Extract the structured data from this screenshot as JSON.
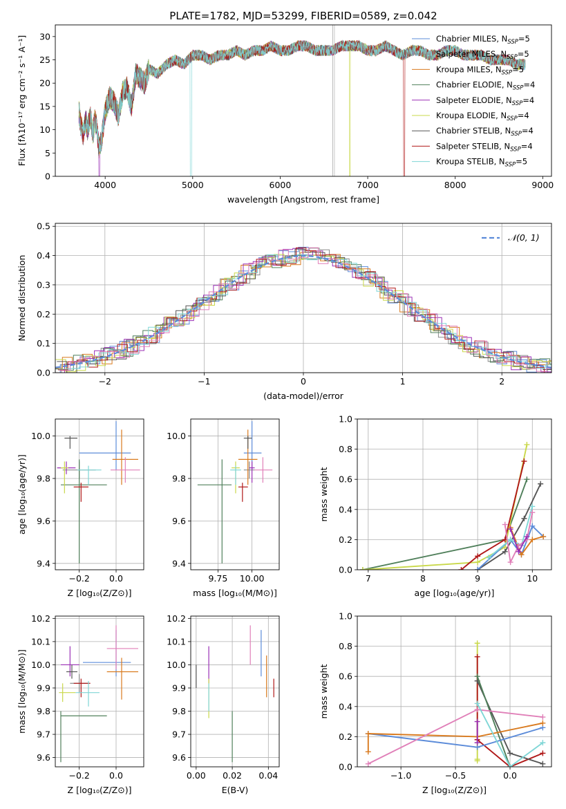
{
  "colors": {
    "chabrier_miles": "#5b8bd9",
    "salpeter_miles": "#8a8a8a",
    "kroupa_miles": "#d97a1e",
    "chabrier_elodie": "#4f7f5a",
    "salpeter_elodie": "#9a2fb5",
    "kroupa_elodie": "#c9d84a",
    "chabrier_stelib": "#555555",
    "salpeter_stelib": "#b01818",
    "kroupa_stelib": "#7fd6d6",
    "pink": "#e07fb8",
    "gaussian": "#5b8bd9"
  },
  "legend_entries": [
    {
      "key": "chabrier_miles",
      "text": "Chabrier MILES, N",
      "sub": "SSP",
      "tail": "=5"
    },
    {
      "key": "salpeter_miles",
      "text": "Salpeter MILES, N",
      "sub": "SSP",
      "tail": "=5"
    },
    {
      "key": "kroupa_miles",
      "text": "Kroupa MILES, N",
      "sub": "SSP",
      "tail": "=5"
    },
    {
      "key": "chabrier_elodie",
      "text": "Chabrier ELODIE, N",
      "sub": "SSP",
      "tail": "=4"
    },
    {
      "key": "salpeter_elodie",
      "text": "Salpeter ELODIE, N",
      "sub": "SSP",
      "tail": "=4"
    },
    {
      "key": "kroupa_elodie",
      "text": "Kroupa ELODIE, N",
      "sub": "SSP",
      "tail": "=4"
    },
    {
      "key": "chabrier_stelib",
      "text": "Chabrier STELIB, N",
      "sub": "SSP",
      "tail": "=4"
    },
    {
      "key": "salpeter_stelib",
      "text": "Salpeter STELIB, N",
      "sub": "SSP",
      "tail": "=4"
    },
    {
      "key": "kroupa_stelib",
      "text": "Kroupa STELIB, N",
      "sub": "SSP",
      "tail": "=5"
    }
  ],
  "chart_data": [
    {
      "id": "spectrum",
      "type": "line",
      "title": "PLATE=1782, MJD=53299, FIBERID=0589, z=0.042",
      "xlabel": "wavelength [Angstrom, rest frame]",
      "ylabel": "Flux [fλ10⁻¹⁷ erg cm⁻² s⁻¹ A⁻¹]",
      "xlim": [
        3430,
        9100
      ],
      "ylim": [
        0,
        32.5
      ],
      "xticks": [
        4000,
        5000,
        6000,
        7000,
        8000,
        9000
      ],
      "yticks": [
        0,
        5,
        10,
        15,
        20,
        25,
        30
      ],
      "grid": false,
      "legend": "top-right",
      "spectrum_x": [
        3700,
        3720,
        3750,
        3780,
        3800,
        3830,
        3860,
        3880,
        3900,
        3930,
        3960,
        4000,
        4050,
        4100,
        4150,
        4200,
        4250,
        4300,
        4350,
        4400,
        4450,
        4500,
        4600,
        4700,
        4800,
        4900,
        5000,
        5100,
        5200,
        5300,
        5400,
        5500,
        5600,
        5700,
        5800,
        5900,
        6000,
        6100,
        6200,
        6300,
        6400,
        6500,
        6600,
        6700,
        6800,
        6900,
        7000,
        7100,
        7200,
        7300,
        7400,
        7500,
        7600,
        7700,
        7800,
        7900,
        8000,
        8100,
        8200,
        8300,
        8400,
        8500,
        8600,
        8700,
        8800
      ],
      "spectrum_y": [
        14,
        11,
        9,
        12,
        10,
        13,
        9,
        12,
        11,
        6,
        8,
        14,
        17,
        16,
        13,
        18,
        19,
        15,
        22,
        21,
        20,
        23,
        22,
        24,
        25,
        24,
        26,
        26,
        25,
        26,
        26,
        27,
        26,
        27,
        27,
        28,
        27,
        27,
        28,
        28,
        27,
        27,
        27,
        28,
        28,
        28,
        27,
        27,
        28,
        27,
        26,
        27,
        27,
        26,
        26,
        27,
        27,
        26,
        26,
        26,
        25,
        25,
        25,
        24,
        24
      ],
      "series_order": [
        "chabrier_miles",
        "salpeter_miles",
        "kroupa_miles",
        "chabrier_elodie",
        "salpeter_elodie",
        "kroupa_elodie",
        "chabrier_stelib",
        "salpeter_stelib",
        "kroupa_stelib"
      ]
    },
    {
      "id": "histogram",
      "type": "bar",
      "xlabel": "(data-model)/error",
      "ylabel": "Normed distribution",
      "xlim": [
        -2.5,
        2.5
      ],
      "ylim": [
        0,
        0.51
      ],
      "xticks": [
        -2,
        -1,
        0,
        1,
        2
      ],
      "yticks": [
        0.0,
        0.1,
        0.2,
        0.3,
        0.4,
        0.5
      ],
      "grid": true,
      "legend": "top-right",
      "legend_label": "𝒩(0, 1)",
      "bin_width": 0.1,
      "gaussian": {
        "mu": 0,
        "sigma": 1
      }
    },
    {
      "id": "age_vs_Z",
      "type": "scatter",
      "xlabel": "Z [log₁₀(Z/Z⊙)]",
      "ylabel": "age  [log₁₀(age/yr)]",
      "xlim": [
        -0.33,
        0.15
      ],
      "ylim": [
        9.37,
        10.08
      ],
      "xticks": [
        -0.2,
        0.0
      ],
      "yticks": [
        9.4,
        9.6,
        9.8,
        10.0
      ],
      "grid": true,
      "points": [
        {
          "c": "chabrier_miles",
          "x": 0.0,
          "y": 9.92,
          "ex": [
            -0.2,
            0.08
          ],
          "ey": [
            9.84,
            10.07
          ]
        },
        {
          "c": "salpeter_miles",
          "x": -0.2,
          "y": 9.84,
          "ex": [
            -0.29,
            -0.11
          ],
          "ey": [
            9.8,
            9.88
          ]
        },
        {
          "c": "kroupa_miles",
          "x": 0.03,
          "y": 9.89,
          "ex": [
            -0.02,
            0.12
          ],
          "ey": [
            9.77,
            10.03
          ]
        },
        {
          "c": "chabrier_elodie",
          "x": -0.2,
          "y": 9.77,
          "ex": [
            -0.3,
            -0.05
          ],
          "ey": [
            9.4,
            9.89
          ]
        },
        {
          "c": "salpeter_elodie",
          "x": -0.27,
          "y": 9.85,
          "ex": [
            -0.32,
            -0.22
          ],
          "ey": [
            9.82,
            9.88
          ]
        },
        {
          "c": "kroupa_elodie",
          "x": -0.28,
          "y": 9.85,
          "ex": [
            -0.3,
            -0.26
          ],
          "ey": [
            9.73,
            9.88
          ]
        },
        {
          "c": "chabrier_stelib",
          "x": -0.25,
          "y": 9.99,
          "ex": [
            -0.28,
            -0.21
          ],
          "ey": [
            9.94,
            10.0
          ]
        },
        {
          "c": "salpeter_stelib",
          "x": -0.19,
          "y": 9.76,
          "ex": [
            -0.23,
            -0.15
          ],
          "ey": [
            9.69,
            9.78
          ]
        },
        {
          "c": "kroupa_stelib",
          "x": -0.15,
          "y": 9.84,
          "ex": [
            -0.21,
            -0.08
          ],
          "ey": [
            9.77,
            9.86
          ]
        },
        {
          "c": "pink",
          "x": 0.05,
          "y": 9.84,
          "ex": [
            -0.03,
            0.13
          ],
          "ey": [
            9.78,
            9.9
          ]
        }
      ]
    },
    {
      "id": "age_vs_mass",
      "type": "scatter",
      "xlabel": "mass [log₁₀(M/M⊙)]",
      "ylabel": "",
      "xlim": [
        9.55,
        10.2
      ],
      "ylim": [
        9.37,
        10.08
      ],
      "xticks": [
        9.75,
        10.0
      ],
      "yticks": [
        9.4,
        9.6,
        9.8,
        10.0
      ],
      "grid": true,
      "points": [
        {
          "c": "chabrier_miles",
          "x": 10.0,
          "y": 9.92,
          "ex": [
            9.94,
            10.07
          ],
          "ey": [
            9.84,
            10.07
          ]
        },
        {
          "c": "salpeter_miles",
          "x": 9.98,
          "y": 9.84,
          "ex": [
            9.94,
            10.02
          ],
          "ey": [
            9.8,
            9.88
          ]
        },
        {
          "c": "kroupa_miles",
          "x": 9.97,
          "y": 9.89,
          "ex": [
            9.9,
            10.04
          ],
          "ey": [
            9.77,
            10.03
          ]
        },
        {
          "c": "chabrier_elodie",
          "x": 9.78,
          "y": 9.77,
          "ex": [
            9.6,
            9.85
          ],
          "ey": [
            9.4,
            9.89
          ]
        },
        {
          "c": "salpeter_elodie",
          "x": 10.0,
          "y": 9.85,
          "ex": [
            9.98,
            10.02
          ],
          "ey": [
            9.78,
            9.88
          ]
        },
        {
          "c": "kroupa_elodie",
          "x": 9.88,
          "y": 9.85,
          "ex": [
            9.85,
            9.91
          ],
          "ey": [
            9.73,
            9.88
          ]
        },
        {
          "c": "chabrier_stelib",
          "x": 9.97,
          "y": 9.99,
          "ex": [
            9.94,
            10.0
          ],
          "ey": [
            9.94,
            10.0
          ]
        },
        {
          "c": "salpeter_stelib",
          "x": 9.93,
          "y": 9.76,
          "ex": [
            9.9,
            9.97
          ],
          "ey": [
            9.69,
            9.78
          ]
        },
        {
          "c": "kroupa_stelib",
          "x": 9.88,
          "y": 9.84,
          "ex": [
            9.84,
            9.92
          ],
          "ey": [
            9.77,
            9.86
          ]
        },
        {
          "c": "pink",
          "x": 10.08,
          "y": 9.84,
          "ex": [
            10.02,
            10.15
          ],
          "ey": [
            9.78,
            9.9
          ]
        }
      ]
    },
    {
      "id": "weight_vs_age",
      "type": "line",
      "xlabel": "age  [log₁₀(age/yr)]",
      "ylabel": "mass weight",
      "xlim": [
        6.8,
        10.35
      ],
      "ylim": [
        0,
        1.0
      ],
      "xticks": [
        7,
        8,
        9,
        10
      ],
      "yticks": [
        0.0,
        0.2,
        0.4,
        0.6,
        0.8,
        1.0
      ],
      "grid": true,
      "series": [
        {
          "c": "chabrier_elodie",
          "x": [
            6.9,
            9.5,
            9.9
          ],
          "y": [
            0.0,
            0.2,
            0.6
          ]
        },
        {
          "c": "kroupa_elodie",
          "x": [
            6.9,
            9.0,
            9.5,
            9.9
          ],
          "y": [
            0.0,
            0.05,
            0.15,
            0.83
          ]
        },
        {
          "c": "salpeter_stelib",
          "x": [
            8.7,
            9.0,
            9.5,
            9.85
          ],
          "y": [
            0.0,
            0.09,
            0.2,
            0.72
          ]
        },
        {
          "c": "chabrier_stelib",
          "x": [
            9.0,
            9.5,
            9.85,
            10.15
          ],
          "y": [
            0.0,
            0.12,
            0.34,
            0.57
          ]
        },
        {
          "c": "chabrier_miles",
          "x": [
            9.0,
            9.6,
            9.8,
            10.0,
            10.2
          ],
          "y": [
            0.0,
            0.2,
            0.1,
            0.29,
            0.22
          ]
        },
        {
          "c": "kroupa_miles",
          "x": [
            9.6,
            9.8,
            10.0,
            10.2
          ],
          "y": [
            0.28,
            0.1,
            0.2,
            0.22
          ]
        },
        {
          "c": "kroupa_stelib",
          "x": [
            9.2,
            9.6,
            9.8,
            10.0
          ],
          "y": [
            0.08,
            0.2,
            0.16,
            0.42
          ]
        },
        {
          "c": "pink",
          "x": [
            9.5,
            9.6,
            9.75,
            9.9,
            10.0
          ],
          "y": [
            0.3,
            0.05,
            0.16,
            0.2,
            0.38
          ]
        },
        {
          "c": "salpeter_elodie",
          "x": [
            9.6,
            9.75,
            9.9
          ],
          "y": [
            0.27,
            0.12,
            0.22
          ]
        }
      ]
    },
    {
      "id": "mass_vs_Z",
      "type": "scatter",
      "xlabel": "Z [log₁₀(Z/Z⊙)]",
      "ylabel": "mass [log₁₀(M/M⊙)]",
      "xlim": [
        -0.33,
        0.15
      ],
      "ylim": [
        9.56,
        10.21
      ],
      "xticks": [
        -0.2,
        0.0
      ],
      "yticks": [
        9.6,
        9.7,
        9.8,
        9.9,
        10.0,
        10.1,
        10.2
      ],
      "grid": true,
      "points": [
        {
          "c": "chabrier_miles",
          "x": 0.0,
          "y": 10.01,
          "ex": [
            -0.18,
            0.08
          ],
          "ey": [
            9.95,
            10.15
          ]
        },
        {
          "c": "salpeter_miles",
          "x": -0.2,
          "y": 9.92,
          "ex": [
            -0.25,
            -0.15
          ],
          "ey": [
            9.88,
            9.96
          ]
        },
        {
          "c": "kroupa_miles",
          "x": 0.03,
          "y": 9.97,
          "ex": [
            -0.05,
            0.12
          ],
          "ey": [
            9.85,
            10.03
          ]
        },
        {
          "c": "chabrier_elodie",
          "x": -0.3,
          "y": 9.78,
          "ex": [
            -0.3,
            -0.05
          ],
          "ey": [
            9.58,
            9.8
          ]
        },
        {
          "c": "salpeter_elodie",
          "x": -0.25,
          "y": 10.0,
          "ex": [
            -0.3,
            -0.2
          ],
          "ey": [
            9.95,
            10.08
          ]
        },
        {
          "c": "kroupa_elodie",
          "x": -0.29,
          "y": 9.88,
          "ex": [
            -0.31,
            -0.22
          ],
          "ey": [
            9.84,
            9.92
          ]
        },
        {
          "c": "chabrier_stelib",
          "x": -0.24,
          "y": 9.97,
          "ex": [
            -0.27,
            -0.21
          ],
          "ey": [
            9.94,
            10.0
          ]
        },
        {
          "c": "salpeter_stelib",
          "x": -0.19,
          "y": 9.92,
          "ex": [
            -0.23,
            -0.14
          ],
          "ey": [
            9.86,
            9.94
          ]
        },
        {
          "c": "kroupa_stelib",
          "x": -0.15,
          "y": 9.88,
          "ex": [
            -0.22,
            -0.09
          ],
          "ey": [
            9.82,
            9.93
          ]
        },
        {
          "c": "pink",
          "x": 0.0,
          "y": 10.07,
          "ex": [
            -0.05,
            0.12
          ],
          "ey": [
            9.98,
            10.17
          ]
        }
      ]
    },
    {
      "id": "mass_vs_ebv",
      "type": "scatter",
      "xlabel": "E(B-V)",
      "ylabel": "",
      "xlim": [
        -0.003,
        0.046
      ],
      "ylim": [
        9.56,
        10.21
      ],
      "xticks": [
        0.0,
        0.02,
        0.04
      ],
      "yticks": [
        9.6,
        9.7,
        9.8,
        9.9,
        10.0,
        10.1,
        10.2
      ],
      "grid": true,
      "points": [
        {
          "c": "chabrier_stelib",
          "x": 0.0,
          "y": 9.95,
          "ey": [
            9.9,
            10.0
          ]
        },
        {
          "c": "salpeter_elodie",
          "x": 0.007,
          "y": 10.0,
          "ey": [
            9.92,
            10.08
          ]
        },
        {
          "c": "kroupa_elodie",
          "x": 0.007,
          "y": 9.88,
          "ey": [
            9.77,
            9.94
          ]
        },
        {
          "c": "kroupa_stelib",
          "x": 0.007,
          "y": 9.86,
          "ey": [
            9.8,
            9.92
          ]
        },
        {
          "c": "chabrier_elodie",
          "x": 0.02,
          "y": 9.7,
          "ey": [
            9.58,
            9.8
          ]
        },
        {
          "c": "pink",
          "x": 0.03,
          "y": 10.07,
          "ey": [
            10.0,
            10.17
          ]
        },
        {
          "c": "chabrier_miles",
          "x": 0.036,
          "y": 10.01,
          "ey": [
            9.95,
            10.15
          ]
        },
        {
          "c": "kroupa_miles",
          "x": 0.039,
          "y": 9.95,
          "ey": [
            9.86,
            10.04
          ]
        },
        {
          "c": "salpeter_stelib",
          "x": 0.043,
          "y": 9.9,
          "ey": [
            9.86,
            9.94
          ]
        }
      ]
    },
    {
      "id": "weight_vs_Z",
      "type": "line",
      "xlabel": "Z [log₁₀(Z/Z⊙)]",
      "ylabel": "mass weight",
      "xlim": [
        -1.4,
        0.38
      ],
      "ylim": [
        0,
        1.0
      ],
      "xticks": [
        -1.0,
        -0.5,
        0.0
      ],
      "yticks": [
        0.0,
        0.2,
        0.4,
        0.6,
        0.8,
        1.0
      ],
      "grid": true,
      "series": [
        {
          "c": "kroupa_elodie",
          "x": [
            -0.3,
            -0.3,
            -0.3
          ],
          "y": [
            0.05,
            0.82,
            0.04
          ]
        },
        {
          "c": "salpeter_stelib",
          "x": [
            -0.3,
            -0.3,
            0.0,
            0.3
          ],
          "y": [
            0.73,
            0.18,
            0.0,
            0.09
          ]
        },
        {
          "c": "chabrier_stelib",
          "x": [
            -0.3,
            0.0,
            0.3
          ],
          "y": [
            0.57,
            0.09,
            0.02
          ]
        },
        {
          "c": "chabrier_elodie",
          "x": [
            -0.3,
            0.0
          ],
          "y": [
            0.6,
            0.0
          ]
        },
        {
          "c": "chabrier_miles",
          "x": [
            -1.3,
            -0.3,
            0.3
          ],
          "y": [
            0.22,
            0.13,
            0.26
          ]
        },
        {
          "c": "kroupa_miles",
          "x": [
            -1.3,
            -1.3,
            -0.3,
            0.3
          ],
          "y": [
            0.1,
            0.22,
            0.2,
            0.29
          ]
        },
        {
          "c": "pink",
          "x": [
            -1.3,
            -0.3,
            0.3
          ],
          "y": [
            0.02,
            0.38,
            0.33
          ]
        },
        {
          "c": "kroupa_stelib",
          "x": [
            -0.3,
            0.0,
            0.3
          ],
          "y": [
            0.42,
            0.0,
            0.16
          ]
        },
        {
          "c": "salpeter_elodie",
          "x": [
            -0.3,
            -0.3
          ],
          "y": [
            0.16,
            0.3
          ]
        }
      ]
    }
  ]
}
